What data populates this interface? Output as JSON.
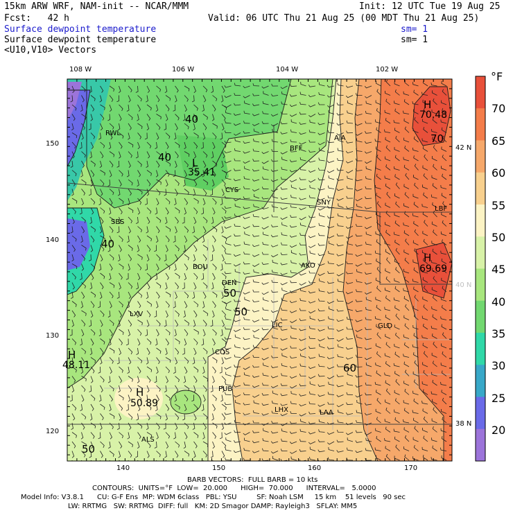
{
  "header": {
    "model_line": "15km ARW WRF, NAM-init -- NCAR/MMM",
    "init_line": "Init: 12 UTC Tue 19 Aug 25",
    "fcst_line": "Fcst:   42 h",
    "valid_line": "Valid: 06 UTC Thu 21 Aug 25 (00 MDT Thu 21 Aug 25)",
    "field1_name": "Surface dewpoint temperature",
    "field1_sm": "sm= 1",
    "field2_name": "Surface dewpoint temperature",
    "field2_sm": "sm= 1",
    "field3_name": "<U10,V10> Vectors"
  },
  "map": {
    "lon_labels": [
      "108 W",
      "106 W",
      "104 W",
      "102 W"
    ],
    "lat_labels": [
      "42 N",
      "40 N",
      "38 N"
    ],
    "grid_y_labels": [
      "150",
      "140",
      "130",
      "120"
    ],
    "grid_x_labels": [
      "140",
      "150",
      "160",
      "170"
    ],
    "stations": [
      "RWL",
      "BFF",
      "AIA",
      "CYS",
      "SNY",
      "SBS",
      "LBF",
      "BOU",
      "AKO",
      "DEN",
      "LXV",
      "LIC",
      "GLD",
      "COS",
      "PUB",
      "LHX",
      "LAA",
      "ALS"
    ],
    "contour_labels": [
      "40",
      "40",
      "40",
      "50",
      "50",
      "60",
      "70",
      "50"
    ],
    "extrema": [
      {
        "mark": "H",
        "value": "70.48"
      },
      {
        "mark": "L",
        "value": "35.41"
      },
      {
        "mark": "H",
        "value": "69.69"
      },
      {
        "mark": "H",
        "value": "48.11"
      },
      {
        "mark": "H",
        "value": "50.89"
      }
    ]
  },
  "colorbar": {
    "unit": "°F",
    "labels": [
      "70",
      "65",
      "60",
      "55",
      "50",
      "45",
      "40",
      "35",
      "30",
      "25",
      "20"
    ],
    "colors": [
      "#e8503a",
      "#f47d4a",
      "#f6a86a",
      "#f8d08e",
      "#fcf3c4",
      "#d8f2a8",
      "#a8e67e",
      "#72d870",
      "#30d8a8",
      "#38a8c8",
      "#6a6ae8",
      "#9c74da"
    ]
  },
  "footer": {
    "barb_line": "BARB VECTORS:  FULL BARB = 10 kts",
    "contour_line": "CONTOURS:  UNITS=°F  LOW=  20.000      HIGH=  70.000      INTERVAL=   5.0000",
    "model_info_line1": "Model Info: V3.8.1      CU: G-F Ens  MP: WDM 6class   PBL: YSU         SF: Noah LSM     15 km    51 levels   90 sec",
    "model_info_line2": "LW: RRTMG   SW: RRTMG  DIFF: full   KM: 2D Smagor DAMP: Rayleigh3   SFLAY: MM5"
  }
}
